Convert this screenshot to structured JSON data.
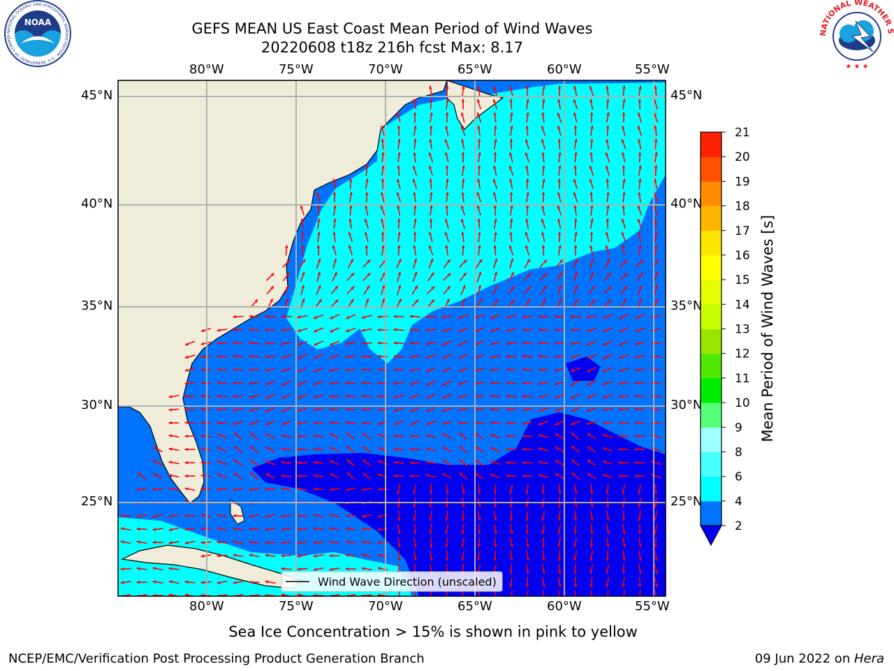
{
  "header": {
    "title_line1": "GEFS MEAN US East Coast Mean Period of Wind Waves",
    "title_line2": "20220608 t18z 216h fcst   Max: 8.17"
  },
  "logos": {
    "left_name": "NOAA",
    "left_ring_text": "NATIONAL OCEANIC AND ATMOSPHERIC ADMINISTRATION · U.S. DEPARTMENT OF COMMERCE",
    "right_ring_text": "NATIONAL WEATHER SERVICE"
  },
  "map": {
    "lon_labels": [
      "80°W",
      "75°W",
      "70°W",
      "65°W",
      "60°W",
      "55°W"
    ],
    "lat_labels": [
      "45°N",
      "40°N",
      "35°N",
      "30°N",
      "25°N"
    ],
    "legend_label": "Wind Wave Direction (unscaled)",
    "colors": {
      "land": "#efedda",
      "ocean_2_4": "#0073ff",
      "ocean_4_6": "#00ffff",
      "ocean_lt_2": "#0000ee",
      "arrows": "#ff0000",
      "grid": "#b0b0b0"
    }
  },
  "colorbar": {
    "label": "Mean Period of Wind Waves [s]",
    "ticks": [
      "2",
      "4",
      "6",
      "8",
      "9",
      "10",
      "11",
      "12",
      "13",
      "14",
      "15",
      "16",
      "17",
      "18",
      "19",
      "20",
      "21"
    ],
    "colors": [
      "#0073ff",
      "#00ffff",
      "#48ffff",
      "#9effff",
      "#55ff7a",
      "#00ee00",
      "#4fe800",
      "#9be600",
      "#c8ff00",
      "#e6ff00",
      "#ffff00",
      "#ffe600",
      "#ffb600",
      "#ff8c00",
      "#ff5000",
      "#ff2000"
    ],
    "extend_color": "#0000ee"
  },
  "footer": {
    "sea_ice_note": "Sea Ice Concentration > 15% is shown in pink to yellow",
    "credit": "NCEP/EMC/Verification Post Processing Product Generation Branch",
    "date_prefix": "09 Jun 2022 on ",
    "machine": "Hera"
  }
}
